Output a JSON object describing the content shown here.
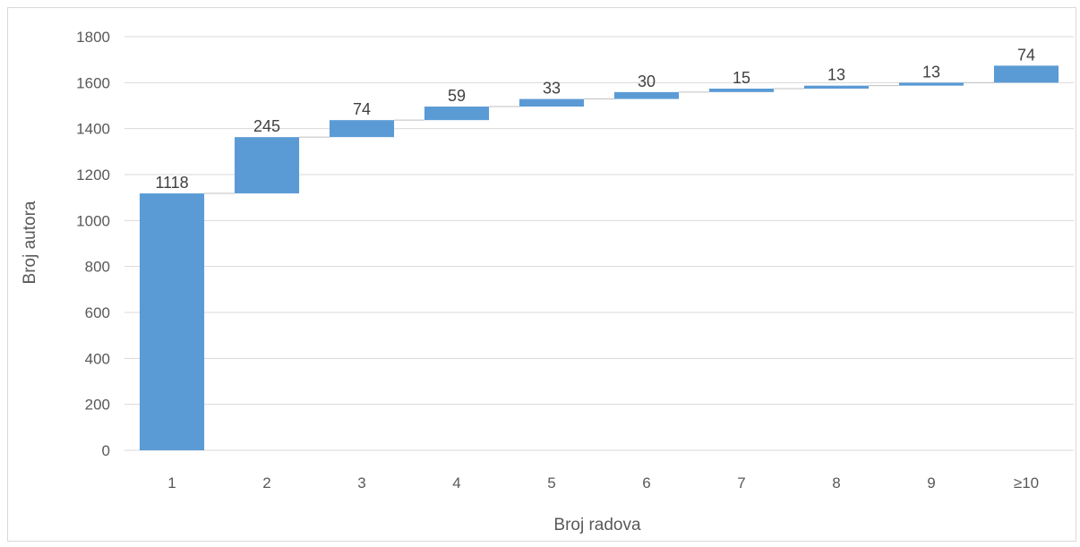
{
  "chart_data": {
    "type": "bar",
    "subtype": "waterfall",
    "title": "",
    "xlabel": "Broj radova",
    "ylabel": "Broj autora",
    "categories": [
      "1",
      "2",
      "3",
      "4",
      "5",
      "6",
      "7",
      "8",
      "9",
      "≥10"
    ],
    "values": [
      1118,
      245,
      74,
      59,
      33,
      30,
      15,
      13,
      13,
      74
    ],
    "ylim": [
      0,
      1800
    ],
    "yticks": [
      0,
      200,
      400,
      600,
      800,
      1000,
      1200,
      1400,
      1600,
      1800
    ],
    "grid": true,
    "legend": "none",
    "colors": {
      "bar": "#5b9bd5",
      "grid": "#d9d9d9",
      "connector": "#bfbfbf",
      "text": "#595959"
    }
  }
}
